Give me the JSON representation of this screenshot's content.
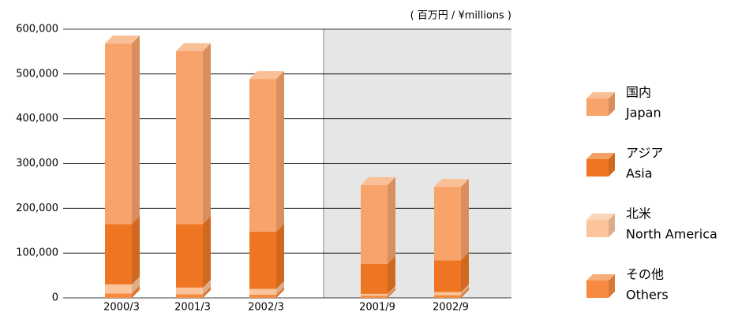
{
  "chart_data": {
    "type": "bar",
    "stacked": true,
    "unit_label": "( 百万円 / ¥millions )",
    "categories": [
      "2000/3",
      "2001/3",
      "2002/3",
      "2001/9",
      "2002/9"
    ],
    "series": [
      {
        "name": "その他",
        "name_en": "Others",
        "color": "#f58a40",
        "values": [
          10000,
          8000,
          7000,
          5000,
          6000
        ]
      },
      {
        "name": "北米",
        "name_en": "North America",
        "color": "#fbc49b",
        "values": [
          20000,
          15000,
          13000,
          4000,
          7000
        ]
      },
      {
        "name": "アジア",
        "name_en": "Asia",
        "color": "#ee7623",
        "values": [
          135000,
          142000,
          128000,
          67000,
          71000
        ]
      },
      {
        "name": "国内",
        "name_en": "Japan",
        "color": "#f7a36a",
        "values": [
          403000,
          386000,
          341000,
          176000,
          164000
        ]
      }
    ],
    "ylim": [
      0,
      600000
    ],
    "yticks": [
      0,
      {
        "value": 100000,
        "label": "100,000"
      },
      {
        "value": 200000,
        "label": "200,000"
      },
      {
        "value": 300000,
        "label": "300,000"
      },
      {
        "value": 400000,
        "label": "400,000"
      },
      {
        "value": 500000,
        "label": "500,000"
      },
      {
        "value": 600000,
        "label": "600,000"
      }
    ],
    "grid": true
  }
}
